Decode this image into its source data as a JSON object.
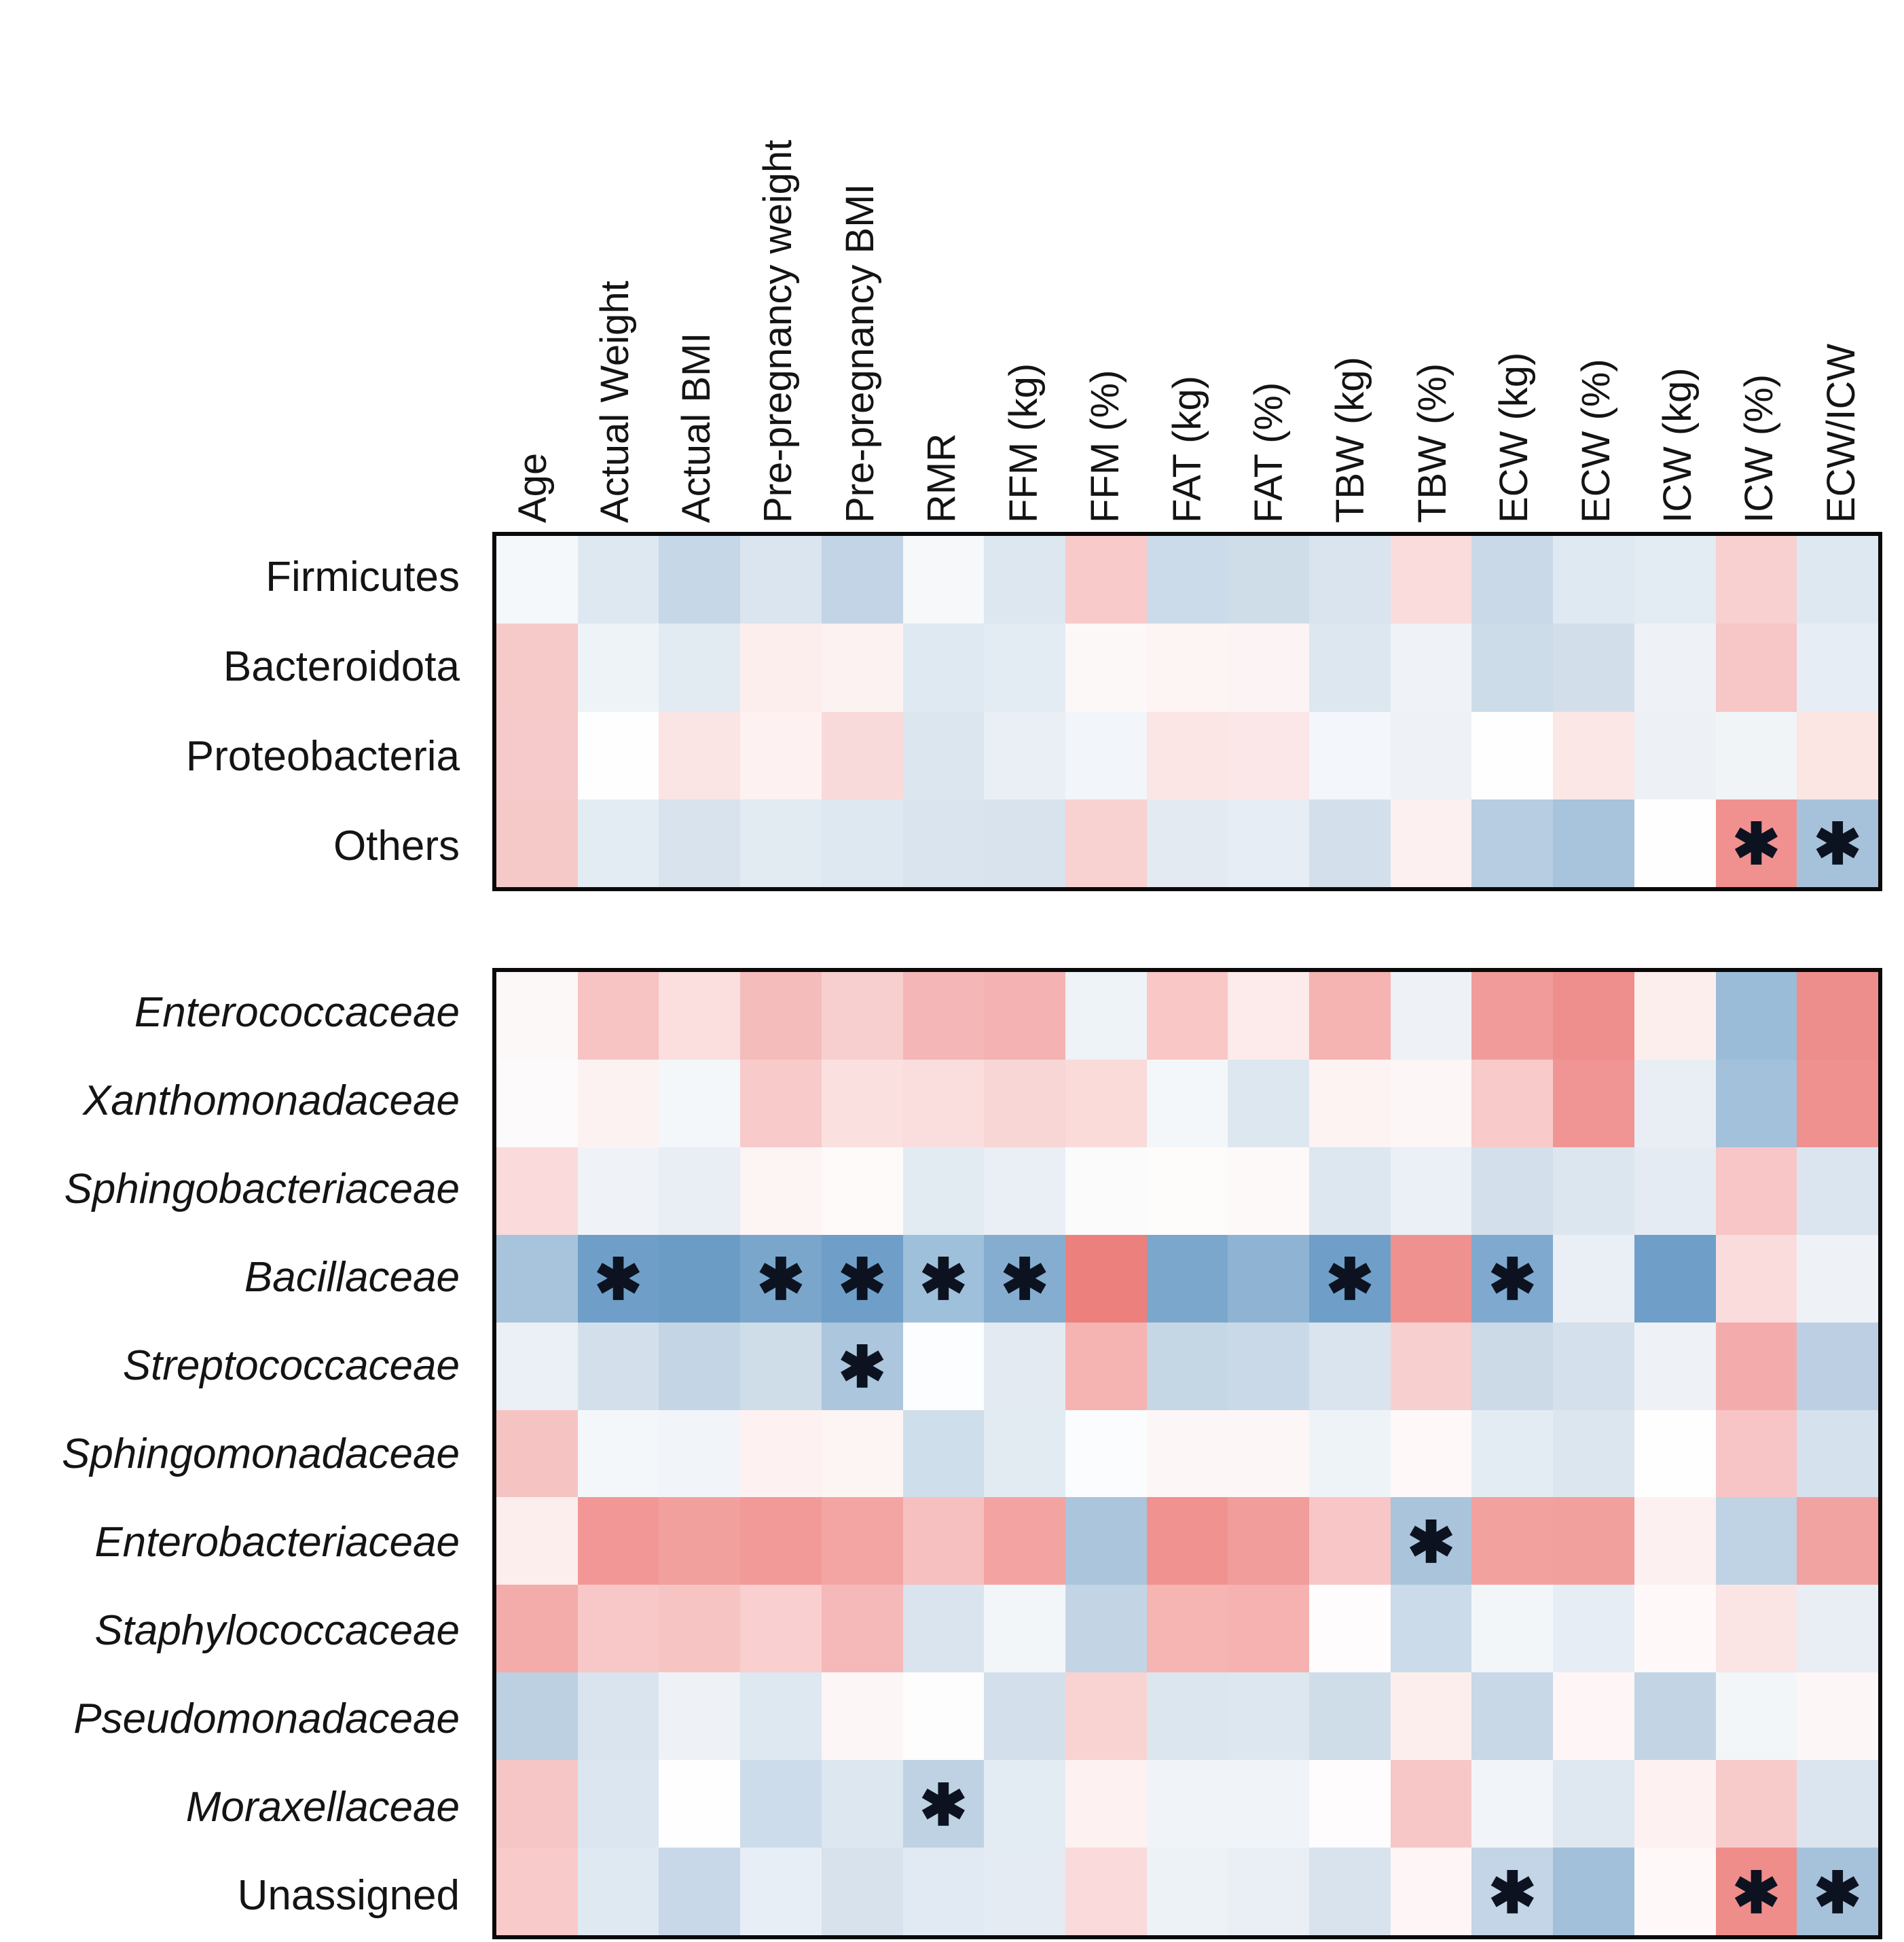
{
  "chart_data": {
    "type": "heatmap",
    "title": "",
    "significance_symbol": "✱",
    "legend_position": "none",
    "grid": false,
    "colormap": {
      "negative": "#6f9fc8",
      "zero": "#ffffff",
      "positive": "#ec807d"
    },
    "columns": [
      "Age",
      "Actual Weight",
      "Actual BMI",
      "Pre-pregnancy weight",
      "Pre-pregnancy BMI",
      "RMR",
      "FFM (kg)",
      "FFM (%)",
      "FAT (kg)",
      "FAT (%)",
      "TBW (kg)",
      "TBW (%)",
      "ECW (kg)",
      "ECW (%)",
      "ICW (kg)",
      "ICW (%)",
      "ECW/ICW"
    ],
    "panels": [
      {
        "name": "phylum-panel",
        "rows": [
          {
            "label": "Firmicutes",
            "italic": false,
            "sig": [],
            "colors": [
              "#f5f8fa",
              "#dee8f1",
              "#c6d7e7",
              "#dae5ef",
              "#c2d4e5",
              "#f6f8fa",
              "#dce7f0",
              "#f8caca",
              "#ccdbe9",
              "#cfdde9",
              "#d9e4ef",
              "#fbdcdc",
              "#c9d9e8",
              "#dfe9f1",
              "#e3ebf3",
              "#f8d0d0",
              "#dee8f1"
            ]
          },
          {
            "label": "Bacteroidota",
            "italic": false,
            "sig": [],
            "colors": [
              "#f7caca",
              "#eef3f7",
              "#e3ebf2",
              "#fdeeee",
              "#fcf2f2",
              "#dfe9f1",
              "#e4ecf3",
              "#fdf8f8",
              "#fdf4f4",
              "#fcf4f4",
              "#dce7f0",
              "#eff3f8",
              "#cddce9",
              "#d2dfea",
              "#eef2f7",
              "#f7c6c6",
              "#e6edf4"
            ]
          },
          {
            "label": "Proteobacteria",
            "italic": false,
            "sig": [],
            "colors": [
              "#f6caca",
              "#fefefe",
              "#fbe4e4",
              "#fdf1f1",
              "#f9dada",
              "#dce6ef",
              "#e9eff5",
              "#f2f5f9",
              "#fbe5e5",
              "#fbe7e7",
              "#f3f6fa",
              "#eef2f6",
              "#fefefe",
              "#fbe7e5",
              "#edf1f6",
              "#f0f4f7",
              "#fbe6e4"
            ]
          },
          {
            "label": "Others",
            "italic": false,
            "sig": [
              15,
              16
            ],
            "colors": [
              "#f6c9c9",
              "#e4ecf3",
              "#d8e3ee",
              "#e2eaf2",
              "#dee8f1",
              "#d9e4ee",
              "#d8e3ee",
              "#f8d1d1",
              "#e3eaf2",
              "#e6edf4",
              "#d3e0ec",
              "#fdf0f0",
              "#b7cde1",
              "#a8c3dc",
              "#fefefe",
              "#f0918f",
              "#a6c2db"
            ]
          }
        ]
      },
      {
        "name": "family-panel",
        "rows": [
          {
            "label": "Enterococcaceae",
            "italic": true,
            "sig": [],
            "colors": [
              "#fdf8f8",
              "#f7c3c3",
              "#fbdede",
              "#f5bcbc",
              "#f8cfcf",
              "#f4b6b6",
              "#f4b2b2",
              "#eef3f8",
              "#f8c7c6",
              "#fdeaea",
              "#f5b3b1",
              "#eef2f7",
              "#f19b9b",
              "#ee8f8d",
              "#fdeeee",
              "#9bbcd8",
              "#ee8e8c"
            ]
          },
          {
            "label": "Xanthomonadaceae",
            "italic": true,
            "sig": [],
            "colors": [
              "#fcfafa",
              "#fdf2f2",
              "#f4f7fa",
              "#f8caca",
              "#fbe0e0",
              "#fadede",
              "#f9d6d6",
              "#fbdada",
              "#f4f7f9",
              "#dde7ef",
              "#fdf3f3",
              "#fdf6f6",
              "#f8caca",
              "#f09594",
              "#e8eef4",
              "#a3c1da",
              "#ef918f"
            ]
          },
          {
            "label": "Sphingobacteriaceae",
            "italic": true,
            "sig": [],
            "colors": [
              "#fadada",
              "#eff3f7",
              "#e8eef4",
              "#fdf4f4",
              "#fefafa",
              "#e3ebf2",
              "#e9eff5",
              "#fbfbfb",
              "#fefbfb",
              "#fdf9f9",
              "#dde7f0",
              "#eaf0f5",
              "#d3dfeb",
              "#dce6ef",
              "#e4ebf3",
              "#f8c6c6",
              "#dbe5ef"
            ]
          },
          {
            "label": "Bacillaceae",
            "italic": true,
            "sig": [
              1,
              3,
              4,
              5,
              6,
              10,
              12
            ],
            "colors": [
              "#a8c4dc",
              "#6f9fc8",
              "#6a9cc6",
              "#7aa6cc",
              "#6f9fc9",
              "#9fc0da",
              "#85adcf",
              "#ec807d",
              "#7ba7cd",
              "#8fb4d3",
              "#6f9fc8",
              "#ef928f",
              "#7fa9ce",
              "#e9eff5",
              "#6f9fc8",
              "#fadcdc",
              "#eef2f7"
            ]
          },
          {
            "label": "Streptococcaceae",
            "italic": true,
            "sig": [
              4
            ],
            "colors": [
              "#eaf0f5",
              "#d3e0ec",
              "#c4d5e6",
              "#cfdde9",
              "#abc6dd",
              "#fcfdfe",
              "#e3eaf1",
              "#f5b3b1",
              "#c5d6e5",
              "#c9d9e7",
              "#d9e4ee",
              "#f8cfcf",
              "#ccdae8",
              "#d4e0eb",
              "#eef2f7",
              "#f4abab",
              "#bdd0e3"
            ]
          },
          {
            "label": "Sphingomonadaceae",
            "italic": true,
            "sig": [],
            "colors": [
              "#f6c3c3",
              "#f4f7fa",
              "#f1f5f9",
              "#fdf1f1",
              "#fdf4f4",
              "#cfdeeb",
              "#e2eaf2",
              "#fbfcfd",
              "#fdf6f6",
              "#fdf6f6",
              "#eef3f7",
              "#fef8f8",
              "#e4ecf3",
              "#dce6ef",
              "#fefefe",
              "#f7c5c5",
              "#d5e2ed"
            ]
          },
          {
            "label": "Enterobacteriaceae",
            "italic": true,
            "sig": [
              11
            ],
            "colors": [
              "#fdeeee",
              "#f29795",
              "#f2a09e",
              "#f19a98",
              "#f3a5a3",
              "#f7c0c0",
              "#f3a4a2",
              "#aac5dc",
              "#f0928f",
              "#f19d9b",
              "#f8c6c6",
              "#a9c4db",
              "#f2a19f",
              "#f1a09d",
              "#fdf0f0",
              "#c0d3e4",
              "#f1a3a1"
            ]
          },
          {
            "label": "Staphylococcaceae",
            "italic": true,
            "sig": [],
            "colors": [
              "#f3acaa",
              "#f8c8c8",
              "#f7c4c4",
              "#f9cfcf",
              "#f5b9b9",
              "#d9e4ee",
              "#f2f6f9",
              "#c3d5e5",
              "#f6b4b2",
              "#f5b2b0",
              "#fefcfd",
              "#cbdbe9",
              "#f3f6f9",
              "#e7edf4",
              "#fef8f8",
              "#fbe4e4",
              "#e8eef4"
            ]
          },
          {
            "label": "Pseudomonadaceae",
            "italic": true,
            "sig": [],
            "colors": [
              "#bdd0e2",
              "#d9e4ee",
              "#eef2f7",
              "#dde8f1",
              "#fdf6f6",
              "#fdfdfd",
              "#d3e0eb",
              "#f9d2d2",
              "#dbe6ef",
              "#dce7f0",
              "#cfdde9",
              "#fdeeee",
              "#c8d8e7",
              "#fef6f6",
              "#c3d5e5",
              "#f2f6f9",
              "#fdf6f6"
            ]
          },
          {
            "label": "Moraxellaceae",
            "italic": true,
            "sig": [
              5
            ],
            "colors": [
              "#f6c6c6",
              "#dce6f0",
              "#fefefe",
              "#ccdcea",
              "#dde7f0",
              "#bed2e4",
              "#e4ecf3",
              "#fdf1f1",
              "#f0f4f8",
              "#f0f4f8",
              "#fefcfc",
              "#f7c7c7",
              "#f1f5f9",
              "#dfe8f1",
              "#fdf1f1",
              "#f8cbcb",
              "#dae5ef"
            ]
          },
          {
            "label": "Unassigned",
            "italic": false,
            "sig": [
              12,
              15,
              16
            ],
            "colors": [
              "#f8caca",
              "#dfe9f1",
              "#c8d8e8",
              "#e8eef5",
              "#d7e2ed",
              "#e1eaf2",
              "#e4ebf3",
              "#fadada",
              "#edf2f7",
              "#e9eff5",
              "#d8e3ee",
              "#fef6f6",
              "#c3d5e6",
              "#a3c0da",
              "#fef8f8",
              "#ee8d8a",
              "#a6c2db"
            ]
          }
        ]
      }
    ]
  }
}
